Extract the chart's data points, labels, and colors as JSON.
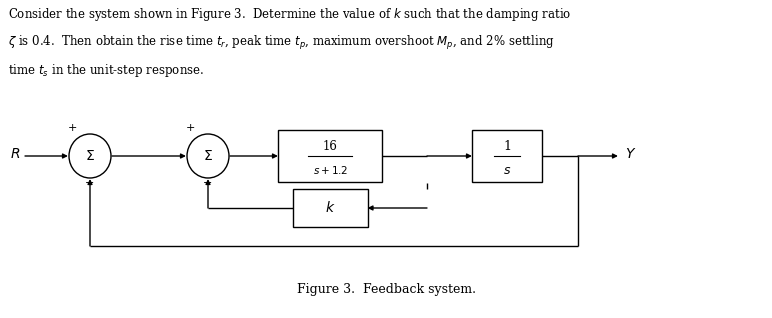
{
  "title_text": "Figure 3.  Feedback system.",
  "bg_color": "#ffffff",
  "line_color": "#000000"
}
